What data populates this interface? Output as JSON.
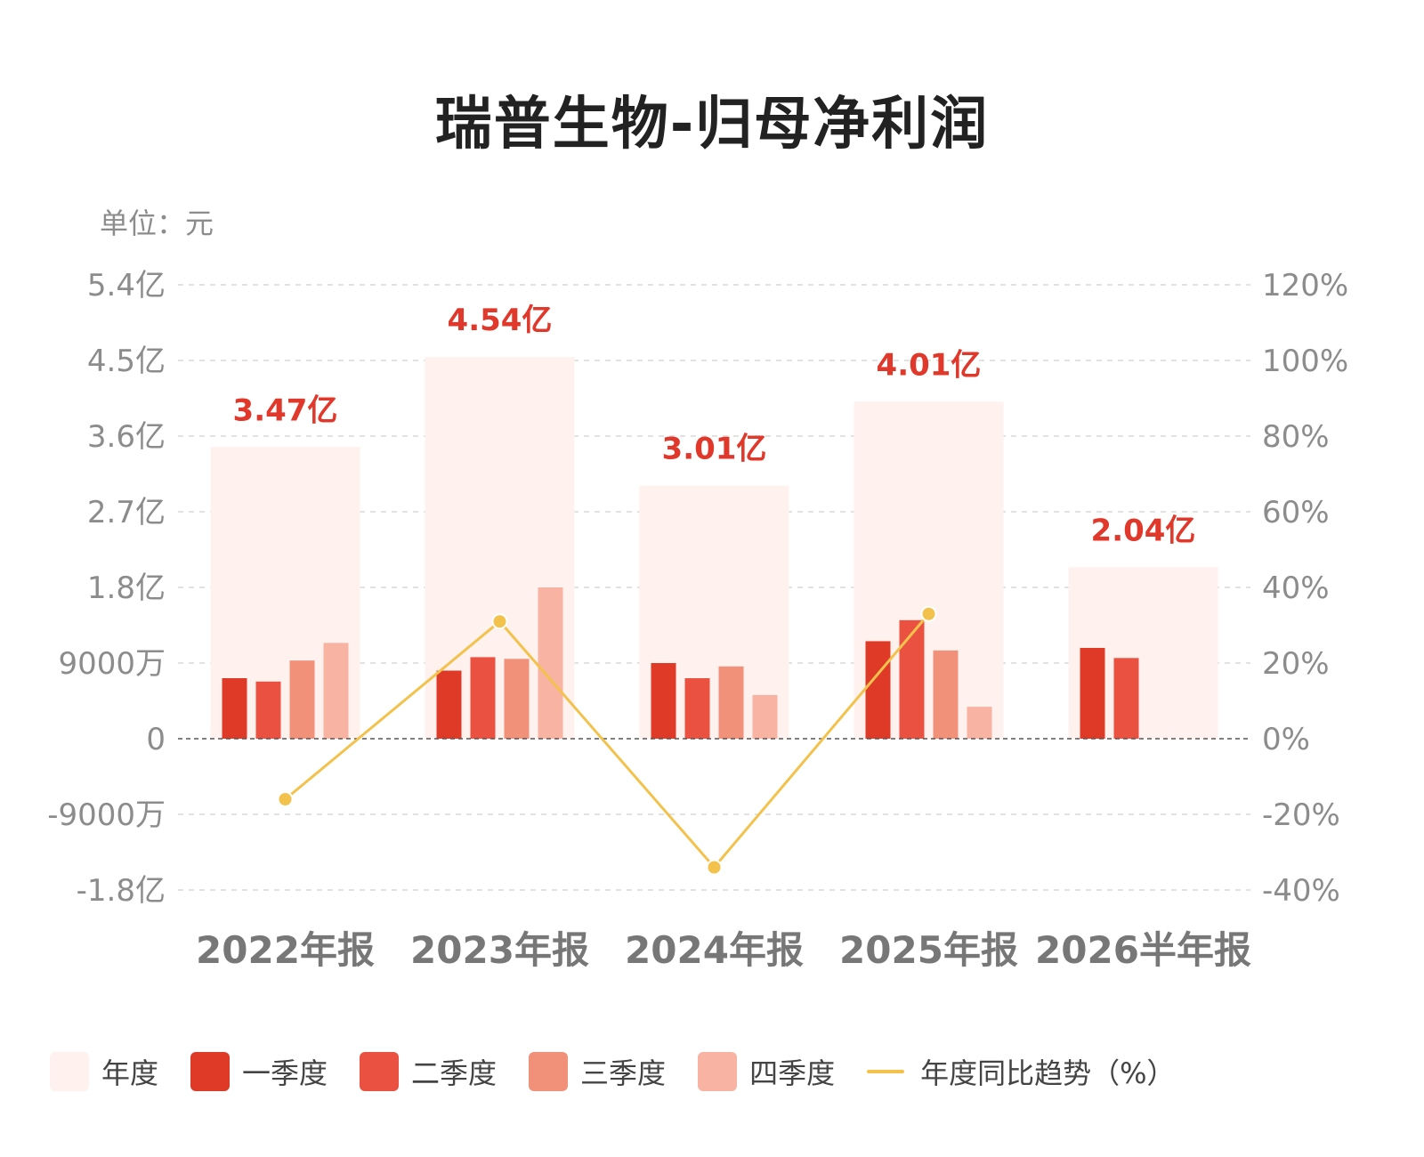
{
  "title": "瑞普生物-归母净利润",
  "unit_label": "单位：元",
  "colors": {
    "annual": "#fff1ee",
    "q1": "#df3a28",
    "q2": "#eb5141",
    "q3": "#f2917a",
    "q4": "#f8b3a3",
    "trend": "#f2c24c",
    "annual_label": "#e0382a",
    "axis_text": "#8c8c8c",
    "grid": "#d9d9d9"
  },
  "legend": [
    {
      "key": "annual",
      "label": "年度",
      "kind": "box"
    },
    {
      "key": "q1",
      "label": "一季度",
      "kind": "box"
    },
    {
      "key": "q2",
      "label": "二季度",
      "kind": "box"
    },
    {
      "key": "q3",
      "label": "三季度",
      "kind": "box"
    },
    {
      "key": "q4",
      "label": "四季度",
      "kind": "box"
    },
    {
      "key": "trend",
      "label": "年度同比趋势（%）",
      "kind": "line"
    }
  ],
  "chart_data": {
    "type": "bar",
    "categories": [
      "2022年报",
      "2023年报",
      "2024年报",
      "2025年报",
      "2026半年报"
    ],
    "series": [
      {
        "name": "年度",
        "key": "annual",
        "values": [
          347000000,
          454000000,
          301000000,
          401000000,
          204000000
        ]
      },
      {
        "name": "一季度",
        "key": "q1",
        "values": [
          72000000,
          81000000,
          90000000,
          116000000,
          108000000
        ]
      },
      {
        "name": "二季度",
        "key": "q2",
        "values": [
          68000000,
          97000000,
          72000000,
          141000000,
          96000000
        ]
      },
      {
        "name": "三季度",
        "key": "q3",
        "values": [
          93000000,
          95000000,
          86000000,
          105000000,
          null
        ]
      },
      {
        "name": "四季度",
        "key": "q4",
        "values": [
          114000000,
          180000000,
          52000000,
          38000000,
          null
        ]
      }
    ],
    "annual_labels": [
      "3.47亿",
      "4.54亿",
      "3.01亿",
      "4.01亿",
      "2.04亿"
    ],
    "trend": {
      "name": "年度同比趋势（%）",
      "axis": "right",
      "values": [
        -16,
        31,
        -34,
        33,
        null
      ]
    },
    "left_axis": {
      "min": -180000000,
      "max": 540000000,
      "ticks": [
        {
          "value": 540000000,
          "label": "5.4亿"
        },
        {
          "value": 450000000,
          "label": "4.5亿"
        },
        {
          "value": 360000000,
          "label": "3.6亿"
        },
        {
          "value": 270000000,
          "label": "2.7亿"
        },
        {
          "value": 180000000,
          "label": "1.8亿"
        },
        {
          "value": 90000000,
          "label": "9000万"
        },
        {
          "value": 0,
          "label": "0"
        },
        {
          "value": -90000000,
          "label": "-9000万"
        },
        {
          "value": -180000000,
          "label": "-1.8亿"
        }
      ]
    },
    "right_axis": {
      "min": -40,
      "max": 120,
      "ticks": [
        {
          "value": 120,
          "label": "120%"
        },
        {
          "value": 100,
          "label": "100%"
        },
        {
          "value": 80,
          "label": "80%"
        },
        {
          "value": 60,
          "label": "60%"
        },
        {
          "value": 40,
          "label": "40%"
        },
        {
          "value": 20,
          "label": "20%"
        },
        {
          "value": 0,
          "label": "0%"
        },
        {
          "value": -20,
          "label": "-20%"
        },
        {
          "value": -40,
          "label": "-40%"
        }
      ]
    },
    "grid": true,
    "legend_position": "bottom"
  }
}
